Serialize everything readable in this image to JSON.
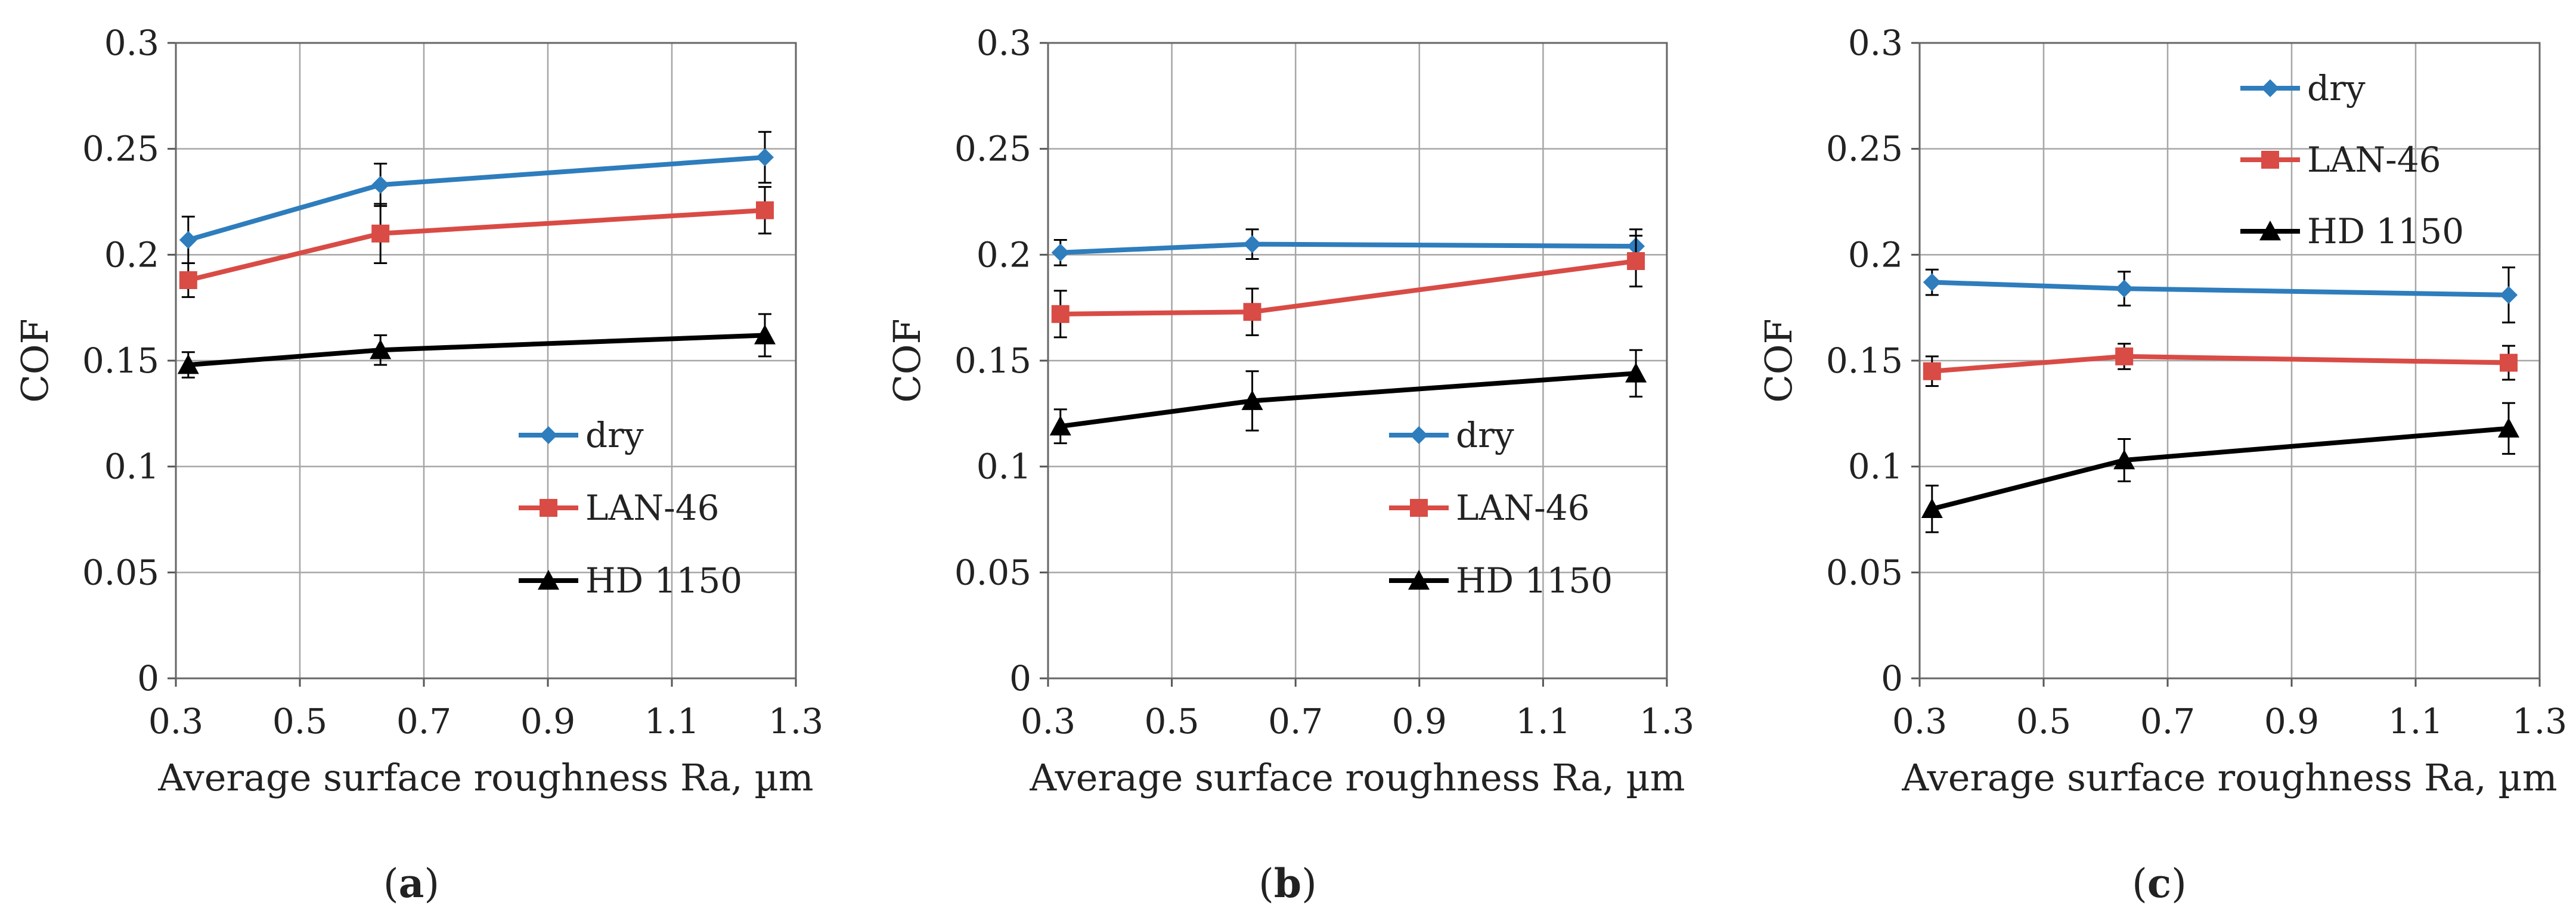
{
  "figure": {
    "background": "#ffffff",
    "gridline_color": "#a6a6a6",
    "series_colors": {
      "dry": "#2e7dbd",
      "LAN-46": "#d94b45",
      "HD 1150": "#000000"
    }
  },
  "chart_data": [
    {
      "panel": "a",
      "panel_label": {
        "open": "(",
        "letter": "a",
        "close": ")"
      },
      "type": "line",
      "xlabel": "Average surface roughness Ra, µm",
      "ylabel": "COF",
      "xlim": [
        0.3,
        1.3
      ],
      "ylim": [
        0,
        0.3
      ],
      "xticks": [
        "0.3",
        "0.5",
        "0.7",
        "0.9",
        "1.1",
        "1.3"
      ],
      "yticks": [
        "0",
        "0.05",
        "0.1",
        "0.15",
        "0.2",
        "0.25",
        "0.3"
      ],
      "grid": true,
      "legend_position": "lower-right",
      "x": [
        0.32,
        0.63,
        1.25
      ],
      "series": [
        {
          "name": "dry",
          "marker": "diamond",
          "color": "#2e7dbd",
          "values": [
            0.207,
            0.233,
            0.246
          ],
          "errors": [
            0.011,
            0.01,
            0.012
          ]
        },
        {
          "name": "LAN-46",
          "marker": "square",
          "color": "#d94b45",
          "values": [
            0.188,
            0.21,
            0.221
          ],
          "errors": [
            0.008,
            0.014,
            0.011
          ]
        },
        {
          "name": "HD 1150",
          "marker": "triangle",
          "color": "#000000",
          "values": [
            0.148,
            0.155,
            0.162
          ],
          "errors": [
            0.006,
            0.007,
            0.01
          ]
        }
      ]
    },
    {
      "panel": "b",
      "panel_label": {
        "open": "(",
        "letter": "b",
        "close": ")"
      },
      "type": "line",
      "xlabel": "Average surface roughness Ra, µm",
      "ylabel": "COF",
      "xlim": [
        0.3,
        1.3
      ],
      "ylim": [
        0,
        0.3
      ],
      "xticks": [
        "0.3",
        "0.5",
        "0.7",
        "0.9",
        "1.1",
        "1.3"
      ],
      "yticks": [
        "0",
        "0.05",
        "0.1",
        "0.15",
        "0.2",
        "0.25",
        "0.3"
      ],
      "grid": true,
      "legend_position": "lower-right",
      "x": [
        0.32,
        0.63,
        1.25
      ],
      "series": [
        {
          "name": "dry",
          "marker": "diamond",
          "color": "#2e7dbd",
          "values": [
            0.201,
            0.205,
            0.204
          ],
          "errors": [
            0.006,
            0.007,
            0.008
          ]
        },
        {
          "name": "LAN-46",
          "marker": "square",
          "color": "#d94b45",
          "values": [
            0.172,
            0.173,
            0.197
          ],
          "errors": [
            0.011,
            0.011,
            0.012
          ]
        },
        {
          "name": "HD 1150",
          "marker": "triangle",
          "color": "#000000",
          "values": [
            0.119,
            0.131,
            0.144
          ],
          "errors": [
            0.008,
            0.014,
            0.011
          ]
        }
      ]
    },
    {
      "panel": "c",
      "panel_label": {
        "open": "(",
        "letter": "c",
        "close": ")"
      },
      "type": "line",
      "xlabel": "Average surface roughness Ra, µm",
      "ylabel": "COF",
      "xlim": [
        0.3,
        1.3
      ],
      "ylim": [
        0,
        0.3
      ],
      "xticks": [
        "0.3",
        "0.5",
        "0.7",
        "0.9",
        "1.1",
        "1.3"
      ],
      "yticks": [
        "0",
        "0.05",
        "0.1",
        "0.15",
        "0.2",
        "0.25",
        "0.3"
      ],
      "grid": true,
      "legend_position": "top-center",
      "x": [
        0.32,
        0.63,
        1.25
      ],
      "series": [
        {
          "name": "dry",
          "marker": "diamond",
          "color": "#2e7dbd",
          "values": [
            0.187,
            0.184,
            0.181
          ],
          "errors": [
            0.006,
            0.008,
            0.013
          ]
        },
        {
          "name": "LAN-46",
          "marker": "square",
          "color": "#d94b45",
          "values": [
            0.145,
            0.152,
            0.149
          ],
          "errors": [
            0.007,
            0.006,
            0.008
          ]
        },
        {
          "name": "HD 1150",
          "marker": "triangle",
          "color": "#000000",
          "values": [
            0.08,
            0.103,
            0.118
          ],
          "errors": [
            0.011,
            0.01,
            0.012
          ]
        }
      ]
    }
  ]
}
